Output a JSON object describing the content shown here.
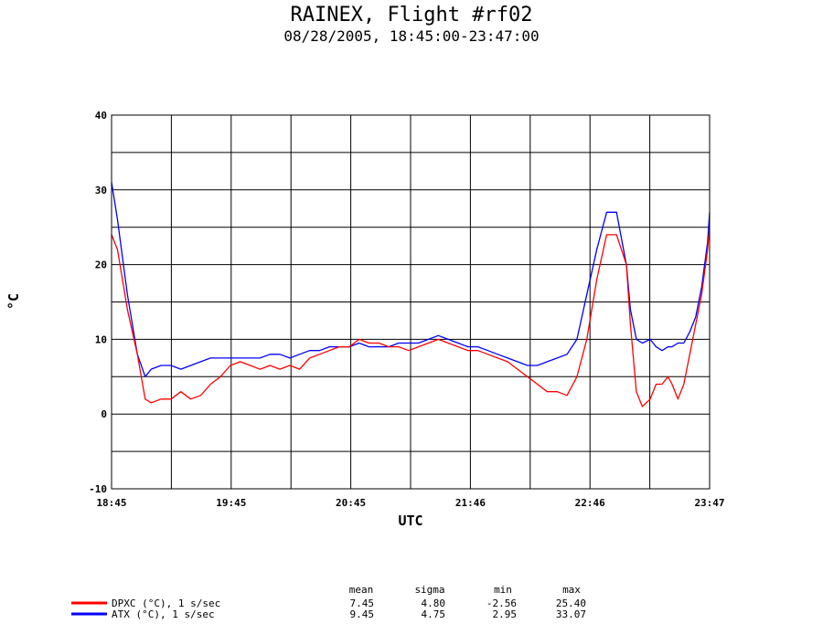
{
  "chart_data": {
    "type": "line",
    "title": "RAINEX, Flight #rf02",
    "subtitle": "08/28/2005, 18:45:00-23:47:00",
    "xlabel": "UTC",
    "ylabel": "°C",
    "ylim": [
      -10,
      40
    ],
    "yticks": [
      "40",
      "30",
      "20",
      "10",
      "0",
      "-10"
    ],
    "xticks": [
      "18:45",
      "19:45",
      "20:45",
      "21:46",
      "22:46",
      "23:47"
    ],
    "grid": true,
    "series": [
      {
        "name": "DPXC (°C), 1 s/sec",
        "color": "#ff0000",
        "x": [
          0,
          3,
          8,
          13,
          17,
          20,
          25,
          30,
          35,
          40,
          45,
          50,
          55,
          60,
          65,
          70,
          75,
          80,
          85,
          90,
          95,
          100,
          105,
          110,
          115,
          120,
          125,
          130,
          135,
          140,
          145,
          150,
          155,
          160,
          165,
          170,
          175,
          180,
          185,
          190,
          195,
          200,
          205,
          210,
          215,
          220,
          225,
          230,
          235,
          240,
          245,
          250,
          255,
          260,
          262,
          265,
          268,
          272,
          275,
          278,
          281,
          283,
          286,
          289,
          292,
          295,
          298,
          301,
          302
        ],
        "y": [
          24,
          22,
          14,
          8,
          2,
          1.5,
          2,
          2,
          3,
          2,
          2.5,
          4,
          5,
          6.5,
          7,
          6.5,
          6,
          6.5,
          6,
          6.5,
          6,
          7.5,
          8,
          8.5,
          9,
          9,
          10,
          9.5,
          9.5,
          9,
          9,
          8.5,
          9,
          9.5,
          10,
          9.5,
          9,
          8.5,
          8.5,
          8,
          7.5,
          7,
          6,
          5,
          4,
          3,
          3,
          2.5,
          5,
          10,
          18,
          24,
          24,
          20,
          12,
          3,
          1,
          2,
          4,
          4,
          5,
          4,
          2,
          4,
          8,
          12,
          16,
          22,
          25
        ]
      },
      {
        "name": "ATX (°C), 1 s/sec",
        "color": "#0000ff",
        "x": [
          0,
          3,
          8,
          13,
          17,
          20,
          25,
          30,
          35,
          40,
          45,
          50,
          55,
          60,
          65,
          70,
          75,
          80,
          85,
          90,
          95,
          100,
          105,
          110,
          115,
          120,
          125,
          130,
          135,
          140,
          145,
          150,
          155,
          160,
          165,
          170,
          175,
          180,
          185,
          190,
          195,
          200,
          205,
          210,
          215,
          220,
          225,
          230,
          235,
          240,
          245,
          250,
          255,
          260,
          262,
          265,
          268,
          272,
          275,
          278,
          281,
          283,
          286,
          289,
          292,
          295,
          298,
          301,
          302
        ],
        "y": [
          31,
          26,
          16,
          8,
          5,
          6,
          6.5,
          6.5,
          6,
          6.5,
          7,
          7.5,
          7.5,
          7.5,
          7.5,
          7.5,
          7.5,
          8,
          8,
          7.5,
          8,
          8.5,
          8.5,
          9,
          9,
          9,
          9.5,
          9,
          9,
          9,
          9.5,
          9.5,
          9.5,
          10,
          10.5,
          10,
          9.5,
          9,
          9,
          8.5,
          8,
          7.5,
          7,
          6.5,
          6.5,
          7,
          7.5,
          8,
          10,
          16,
          22,
          27,
          27,
          20,
          14,
          10,
          9.5,
          10,
          9,
          8.5,
          9,
          9,
          9.5,
          9.5,
          11,
          13,
          17,
          23,
          27
        ]
      }
    ],
    "stats_headers": [
      "mean",
      "sigma",
      "min",
      "max"
    ],
    "stats": [
      [
        "7.45",
        "4.80",
        "-2.56",
        "25.40"
      ],
      [
        "9.45",
        "4.75",
        "2.95",
        "33.07"
      ]
    ]
  }
}
